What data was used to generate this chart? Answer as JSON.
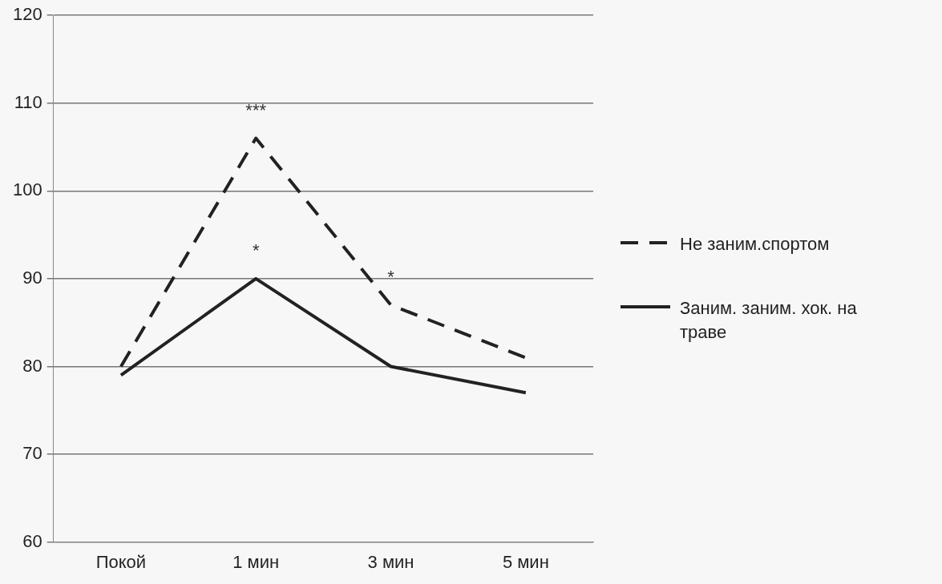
{
  "chart_data": {
    "type": "line",
    "categories": [
      "Покой",
      "1 мин",
      "3 мин",
      "5 мин"
    ],
    "series": [
      {
        "name": "Не заним.спортом",
        "color": "#222222",
        "values": [
          80,
          106,
          87,
          81
        ],
        "line_style": "dashed"
      },
      {
        "name": "Заним. заним. хок. на траве",
        "color": "#222222",
        "values": [
          79,
          90,
          80,
          77
        ],
        "line_style": "solid"
      }
    ],
    "ylim": [
      60,
      120
    ],
    "yticks": [
      60,
      70,
      80,
      90,
      100,
      110,
      120
    ],
    "grid": "y",
    "legend": "right",
    "marker": "none",
    "annotations": [
      {
        "text": "***",
        "x": "1 мин",
        "y": 106
      },
      {
        "text": "*",
        "x": "1 мин",
        "y": 90
      },
      {
        "text": "*",
        "x": "3 мин",
        "y": 87
      }
    ]
  }
}
